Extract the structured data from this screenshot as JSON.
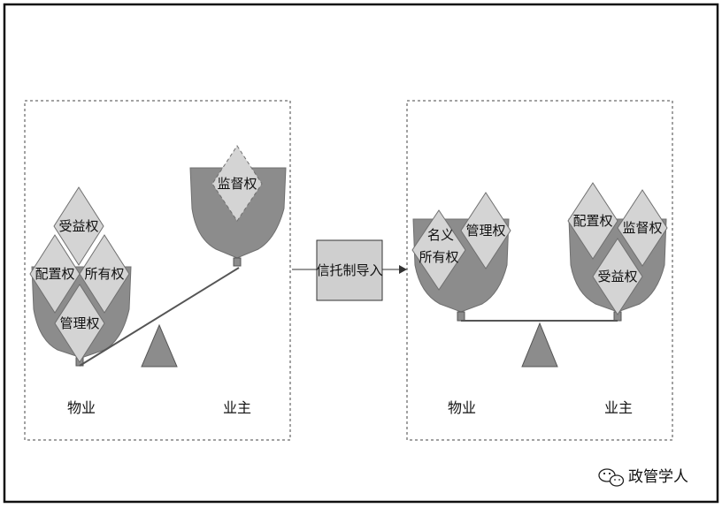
{
  "before": {
    "bowl_left": {
      "rights": [
        "受益权",
        "配置权",
        "所有权",
        "管理权"
      ],
      "label": "物业"
    },
    "bowl_right": {
      "rights": [
        "监督权"
      ],
      "label": "业主"
    }
  },
  "process": {
    "label": "信托制导入"
  },
  "after": {
    "bowl_left": {
      "rights": [
        "名义",
        "所有权",
        "管理权"
      ],
      "label": "物业"
    },
    "bowl_right": {
      "rights": [
        "配置权",
        "监督权",
        "受益权"
      ],
      "label": "业主"
    }
  },
  "watermark": {
    "text": "政管学人",
    "icon": "wechat-icon"
  },
  "colors": {
    "bowl": "#8c8c8c",
    "diamond": "#d4d4d4",
    "stroke": "#6f6f6f",
    "process_fill": "#cfcfcf"
  }
}
